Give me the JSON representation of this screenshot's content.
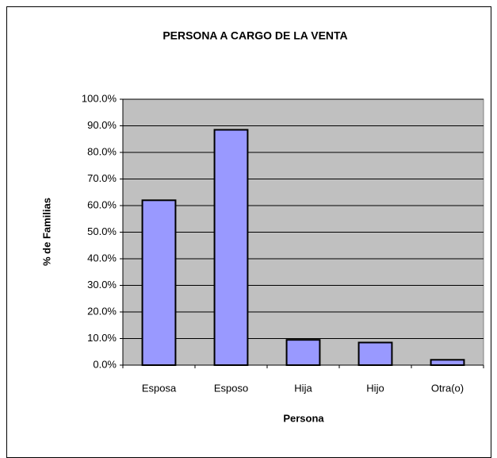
{
  "chart_data": {
    "type": "bar",
    "title": "PERSONA A CARGO DE LA VENTA",
    "x_label": "Persona",
    "y_label": "% de Familias",
    "categories": [
      "Esposa",
      "Esposo",
      "Hija",
      "Hijo",
      "Otra(o)"
    ],
    "values": [
      62,
      88.5,
      9.5,
      8.5,
      2
    ],
    "color": "#9999ff",
    "ylim": [
      0,
      100
    ],
    "yticks": [
      {
        "value": 0,
        "label": "0.0%"
      },
      {
        "value": 10,
        "label": "10.0%"
      },
      {
        "value": 20,
        "label": "20.0%"
      },
      {
        "value": 30,
        "label": "30.0%"
      },
      {
        "value": 40,
        "label": "40.0%"
      },
      {
        "value": 50,
        "label": "50.0%"
      },
      {
        "value": 60,
        "label": "60.0%"
      },
      {
        "value": 70,
        "label": "70.0%"
      },
      {
        "value": 80,
        "label": "80.0%"
      },
      {
        "value": 90,
        "label": "90.0%"
      },
      {
        "value": 100,
        "label": "100.0%"
      }
    ],
    "grid": true
  }
}
